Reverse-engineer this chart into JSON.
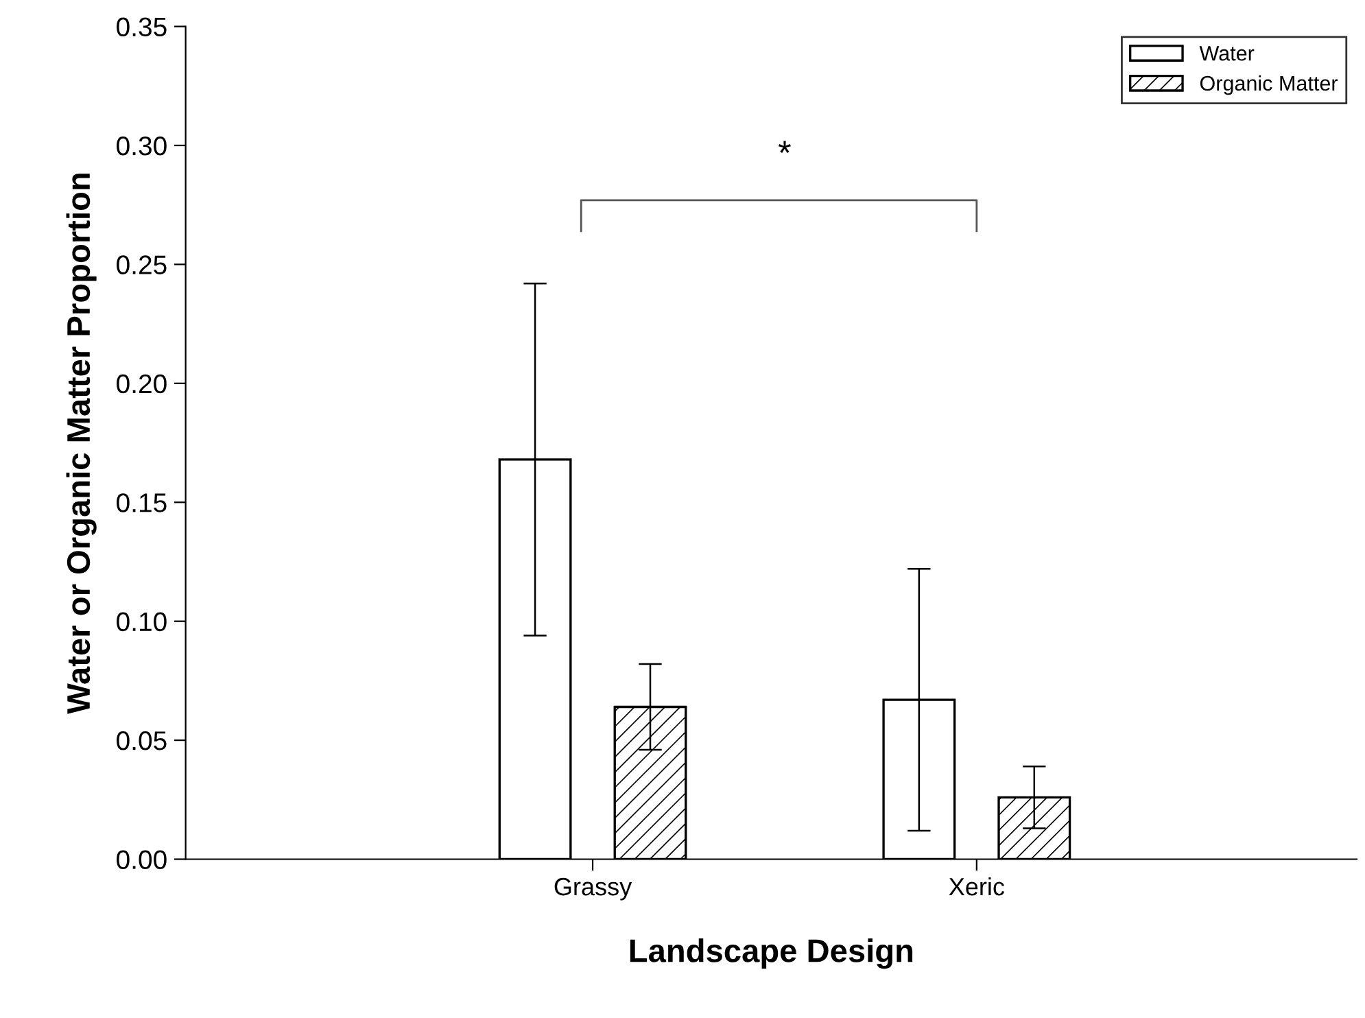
{
  "chart_data": {
    "type": "bar",
    "xlabel": "Landscape Design",
    "ylabel": "Water or Organic Matter Proportion",
    "categories": [
      "Grassy",
      "Xeric"
    ],
    "series": [
      {
        "name": "Water",
        "color": "#ffffff",
        "values": [
          0.168,
          0.067
        ],
        "errors": [
          0.074,
          0.055
        ]
      },
      {
        "name": "Organic Matter",
        "color": "#000000",
        "values": [
          0.064,
          0.026
        ],
        "errors": [
          0.018,
          0.013
        ]
      }
    ],
    "ylim": [
      0,
      0.35
    ],
    "yticks": [
      {
        "value": 0,
        "label": "0.00"
      },
      {
        "value": 0.05,
        "label": "0.05"
      },
      {
        "value": 0.1,
        "label": "0.10"
      },
      {
        "value": 0.15,
        "label": "0.15"
      },
      {
        "value": 0.2,
        "label": "0.20"
      },
      {
        "value": 0.25,
        "label": "0.25"
      },
      {
        "value": 0.3,
        "label": "0.30"
      },
      {
        "value": 0.35,
        "label": "0.35"
      }
    ],
    "annotations": [
      "*"
    ],
    "grid": false,
    "legend": "top right"
  }
}
